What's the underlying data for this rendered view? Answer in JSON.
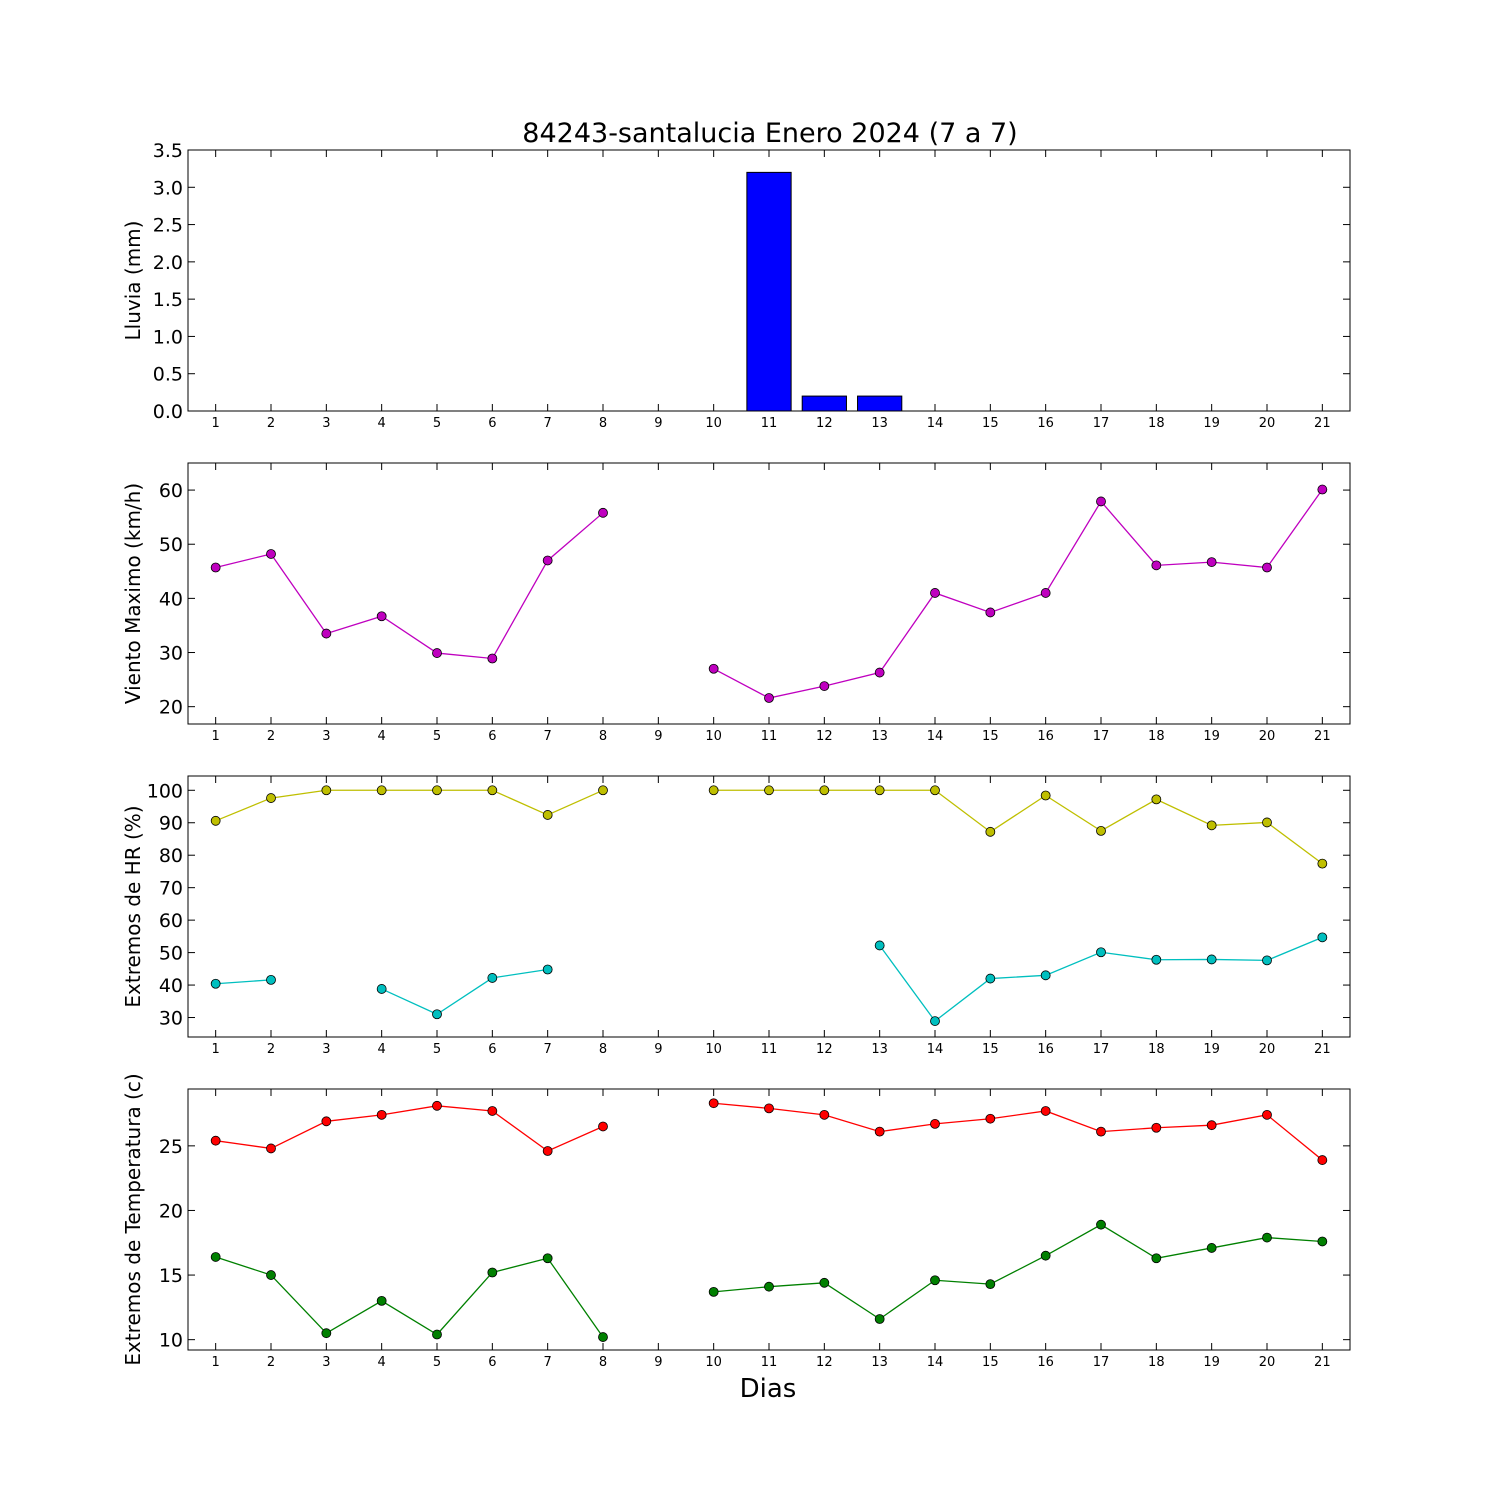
{
  "figure": {
    "title": "84243-santalucia Enero 2024  (7 a 7)",
    "xlabel": "Dias"
  },
  "chart_data": [
    {
      "type": "bar",
      "ylabel": "Lluvia (mm)",
      "x": [
        1,
        2,
        3,
        4,
        5,
        6,
        7,
        8,
        9,
        10,
        11,
        12,
        13,
        14,
        15,
        16,
        17,
        18,
        19,
        20,
        21
      ],
      "ylim": [
        0,
        3.5
      ],
      "yticks": [
        0.0,
        0.5,
        1.0,
        1.5,
        2.0,
        2.5,
        3.0,
        3.5
      ],
      "ytick_labels": [
        "0.0",
        "0.5",
        "1.0",
        "1.5",
        "2.0",
        "2.5",
        "3.0",
        "3.5"
      ],
      "series": [
        {
          "color": "#0000ff",
          "values": [
            0,
            0,
            0,
            0,
            0,
            0,
            0,
            0,
            0,
            0,
            3.2,
            0.2,
            0.2,
            0,
            0,
            0,
            0,
            0,
            0,
            0,
            0
          ]
        }
      ]
    },
    {
      "type": "line",
      "ylabel": "Viento Maximo (km/h)",
      "x": [
        1,
        2,
        3,
        4,
        5,
        6,
        7,
        8,
        9,
        10,
        11,
        12,
        13,
        14,
        15,
        16,
        17,
        18,
        19,
        20,
        21
      ],
      "ylim": [
        16.8,
        65
      ],
      "yticks": [
        20,
        30,
        40,
        50,
        60
      ],
      "ytick_labels": [
        "20",
        "30",
        "40",
        "50",
        "60"
      ],
      "series": [
        {
          "color": "#bf00bf",
          "values": [
            45.7,
            48.2,
            33.5,
            36.7,
            29.9,
            28.9,
            47.0,
            55.8,
            null,
            27.0,
            21.6,
            23.8,
            26.3,
            41.0,
            37.4,
            41.0,
            57.9,
            46.1,
            46.7,
            45.7,
            60.1
          ]
        }
      ]
    },
    {
      "type": "line",
      "ylabel": "Extremos de HR (%)",
      "x": [
        1,
        2,
        3,
        4,
        5,
        6,
        7,
        8,
        9,
        10,
        11,
        12,
        13,
        14,
        15,
        16,
        17,
        18,
        19,
        20,
        21
      ],
      "ylim": [
        24,
        104.4
      ],
      "yticks": [
        30,
        40,
        50,
        60,
        70,
        80,
        90,
        100
      ],
      "ytick_labels": [
        "30",
        "40",
        "50",
        "60",
        "70",
        "80",
        "90",
        "100"
      ],
      "series": [
        {
          "color": "#bfbf00",
          "values": [
            90.6,
            97.6,
            100,
            100,
            100,
            100,
            92.4,
            100,
            null,
            100,
            100,
            100,
            100,
            100,
            87.2,
            98.4,
            87.5,
            97.2,
            89.2,
            90.1,
            77.4
          ]
        },
        {
          "color": "#00bfbf",
          "values": [
            40.4,
            41.6,
            null,
            38.8,
            31.0,
            42.2,
            44.8,
            null,
            null,
            null,
            null,
            null,
            52.2,
            28.9,
            42.0,
            43.0,
            50.1,
            47.8,
            47.9,
            47.6,
            54.7
          ]
        }
      ]
    },
    {
      "type": "line",
      "ylabel": "Extremos de Temperatura (c)",
      "x": [
        1,
        2,
        3,
        4,
        5,
        6,
        7,
        8,
        9,
        10,
        11,
        12,
        13,
        14,
        15,
        16,
        17,
        18,
        19,
        20,
        21
      ],
      "ylim": [
        9.2,
        29.4
      ],
      "yticks": [
        10,
        15,
        20,
        25
      ],
      "ytick_labels": [
        "10",
        "15",
        "20",
        "25"
      ],
      "series": [
        {
          "color": "#ff0000",
          "values": [
            25.4,
            24.8,
            26.9,
            27.4,
            28.1,
            27.7,
            24.6,
            26.5,
            null,
            28.3,
            27.9,
            27.4,
            26.1,
            26.7,
            27.1,
            27.7,
            26.1,
            26.4,
            26.6,
            27.4,
            23.9
          ]
        },
        {
          "color": "#008000",
          "values": [
            16.4,
            15.0,
            10.5,
            13.0,
            10.4,
            15.2,
            16.3,
            10.2,
            null,
            13.7,
            14.1,
            14.4,
            11.6,
            14.6,
            14.3,
            16.5,
            18.9,
            16.3,
            17.1,
            17.9,
            17.6
          ]
        }
      ]
    }
  ]
}
